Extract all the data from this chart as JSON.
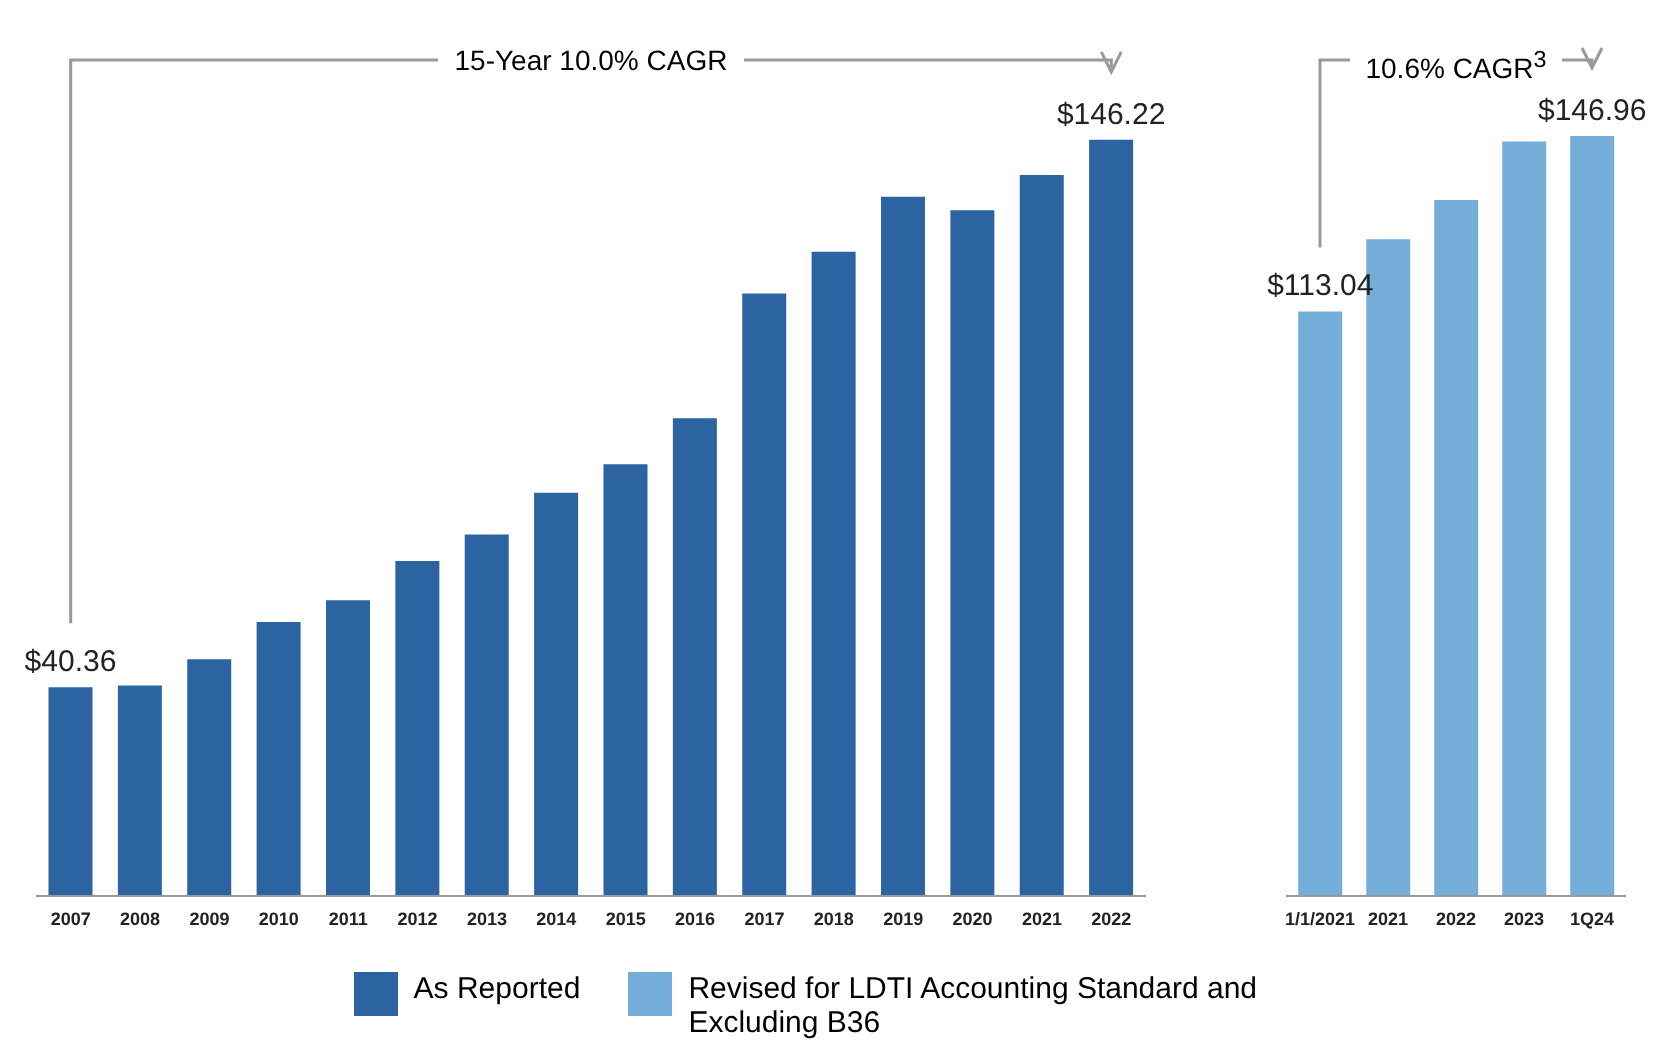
{
  "chart_data": [
    {
      "type": "bar",
      "categories": [
        "2007",
        "2008",
        "2009",
        "2010",
        "2011",
        "2012",
        "2013",
        "2014",
        "2015",
        "2016",
        "2017",
        "2018",
        "2019",
        "2020",
        "2021",
        "2022"
      ],
      "series": [
        {
          "name": "As Reported",
          "color": "#2b64a0",
          "values": [
            40.36,
            40.7,
            45.8,
            53.0,
            57.2,
            64.8,
            69.9,
            78.0,
            83.5,
            92.4,
            116.5,
            124.6,
            135.2,
            132.6,
            139.4,
            146.22
          ],
          "value_labels": [
            "$40.36",
            null,
            null,
            null,
            null,
            null,
            null,
            null,
            null,
            null,
            null,
            null,
            null,
            null,
            null,
            "$146.22"
          ]
        }
      ],
      "annotations": [
        "15-Year 10.0% CAGR"
      ],
      "legend": "bottom"
    },
    {
      "type": "bar",
      "categories": [
        "1/1/2021",
        "2021",
        "2022",
        "2023",
        "1Q24"
      ],
      "series": [
        {
          "name": "Revised for LDTI Accounting Standard and Excluding B36",
          "color": "#74add8",
          "values": [
            113.04,
            127.0,
            134.6,
            145.9,
            146.96
          ],
          "value_labels": [
            "$113.04",
            null,
            null,
            null,
            "$146.96"
          ]
        }
      ],
      "annotations": [
        "10.6% CAGR$^{3}$"
      ],
      "legend": "bottom"
    }
  ]
}
